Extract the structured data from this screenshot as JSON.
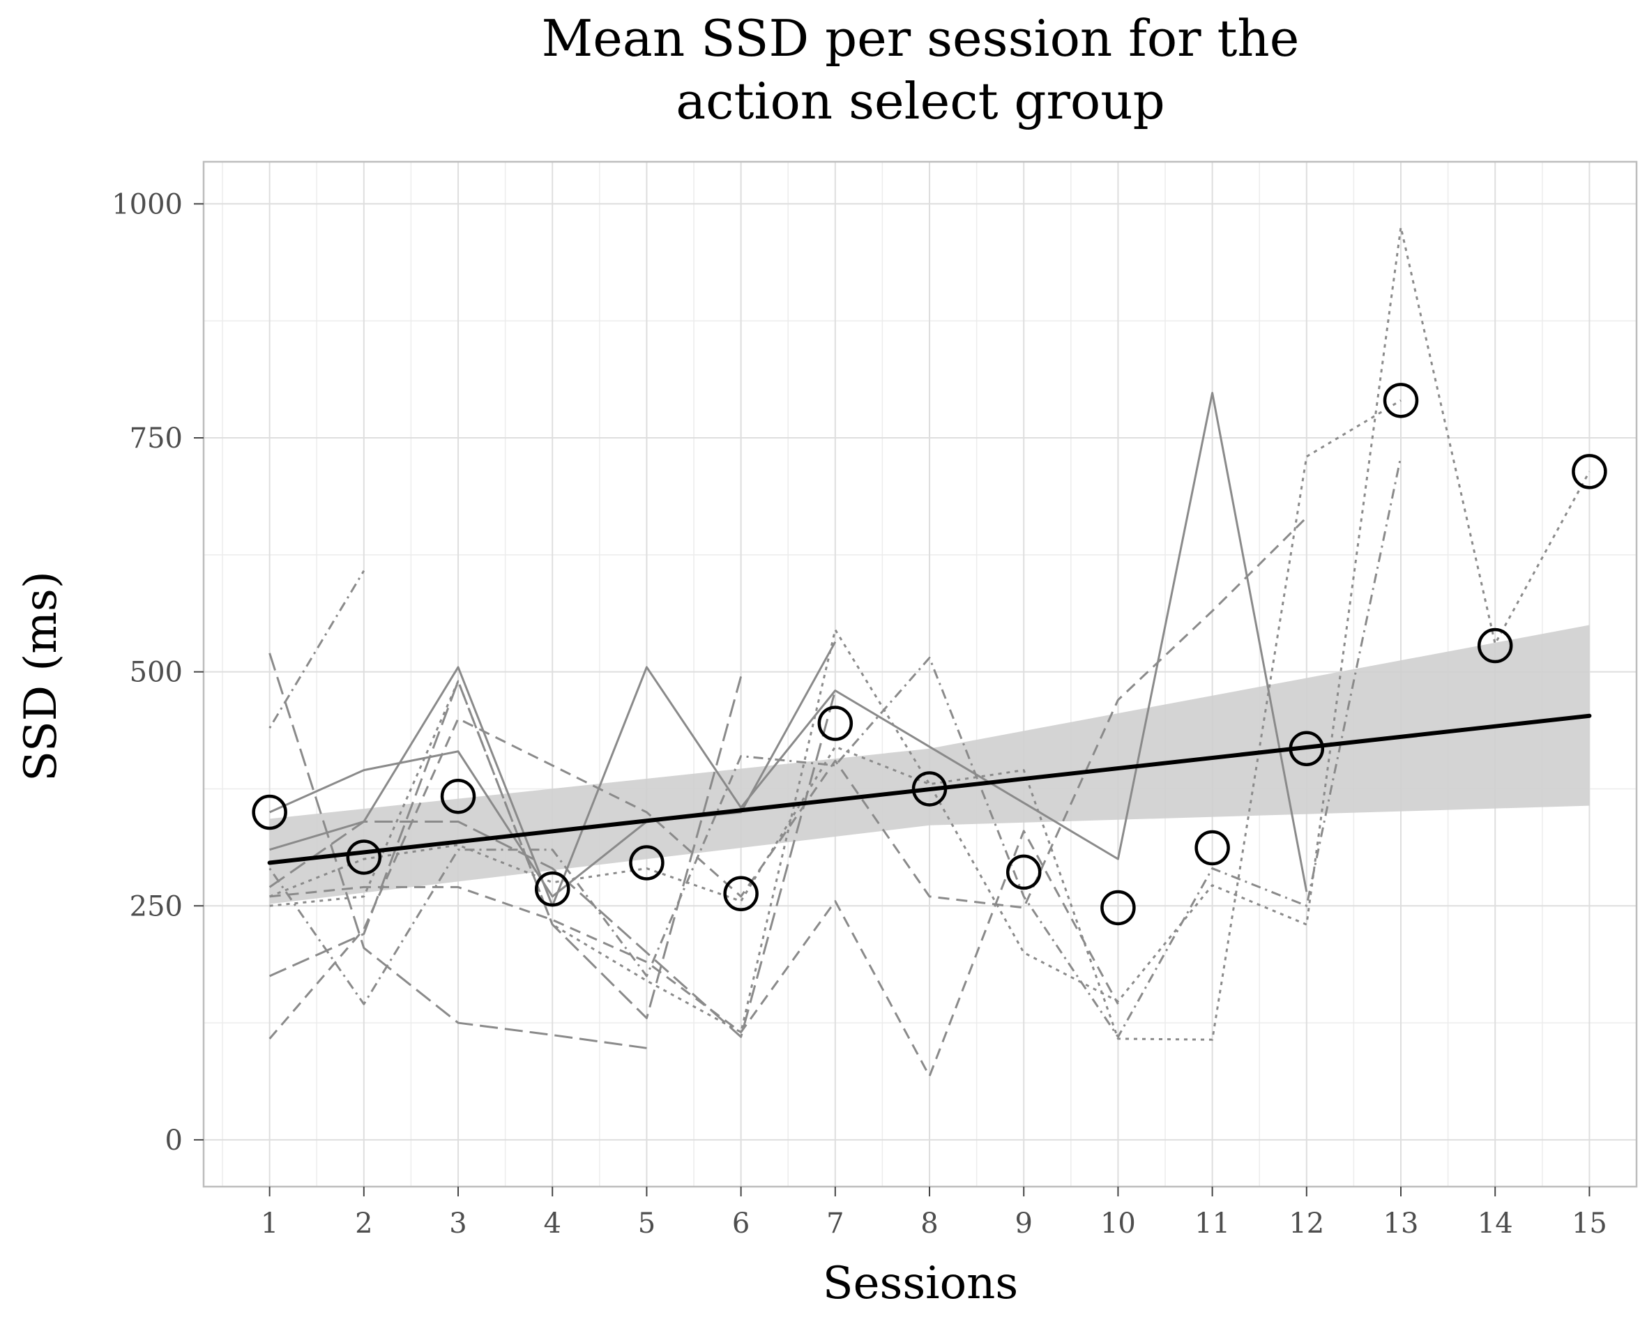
{
  "chart_data": {
    "type": "line",
    "title_lines": [
      "Mean SSD per session for the",
      "action select group"
    ],
    "xlabel": "Sessions",
    "ylabel": "SSD (ms)",
    "x": [
      1,
      2,
      3,
      4,
      5,
      6,
      7,
      8,
      9,
      10,
      11,
      12,
      13,
      14,
      15
    ],
    "xlim": [
      0.3,
      15.5
    ],
    "ylim": [
      -50,
      1045
    ],
    "x_ticks": [
      1,
      2,
      3,
      4,
      5,
      6,
      7,
      8,
      9,
      10,
      11,
      12,
      13,
      14,
      15
    ],
    "y_ticks": [
      0,
      250,
      500,
      750,
      1000
    ],
    "y_minor_ticks": [
      125,
      375,
      625,
      875
    ],
    "grid": true,
    "legend": "none",
    "means": [
      350,
      302,
      367,
      268,
      296,
      263,
      445,
      375,
      286,
      248,
      312,
      418,
      790,
      528,
      714
    ],
    "trend": {
      "x0": 1,
      "y0": 296,
      "x1": 15,
      "y1": 453
    },
    "ribbon": {
      "x": [
        1,
        8,
        15
      ],
      "lower": [
        252,
        336,
        357
      ],
      "upper": [
        343,
        418,
        550
      ]
    },
    "series": [
      {
        "linestyle": "solid",
        "x": [
          1,
          2,
          3,
          4,
          5,
          6,
          7,
          8,
          9,
          10,
          11,
          12
        ],
        "values": [
          310,
          340,
          505,
          250,
          505,
          355,
          480,
          420,
          360,
          300,
          798,
          265
        ]
      },
      {
        "linestyle": "solid",
        "x": [
          1,
          2,
          3,
          4,
          5,
          6,
          7
        ],
        "values": [
          350,
          395,
          415,
          260,
          340,
          350,
          532
        ]
      },
      {
        "linestyle": "longdash",
        "x": [
          1,
          2,
          3,
          4,
          5,
          6,
          7
        ],
        "values": [
          270,
          340,
          340,
          290,
          200,
          110,
          480
        ]
      },
      {
        "linestyle": "longdash",
        "x": [
          1,
          2,
          3,
          4,
          5,
          6
        ],
        "values": [
          175,
          220,
          490,
          230,
          130,
          495
        ]
      },
      {
        "linestyle": "longdash",
        "x": [
          1,
          2,
          3,
          4,
          5
        ],
        "values": [
          520,
          205,
          125,
          112,
          98
        ]
      },
      {
        "linestyle": "dashed",
        "x": [
          1,
          2,
          3,
          4,
          5,
          6,
          7,
          8,
          9,
          10,
          11,
          12
        ],
        "values": [
          108,
          225,
          450,
          400,
          350,
          260,
          405,
          260,
          248,
          470,
          565,
          665
        ]
      },
      {
        "linestyle": "dashed",
        "x": [
          1,
          2,
          3,
          4,
          5,
          6,
          7,
          8,
          9,
          10
        ],
        "values": [
          260,
          270,
          270,
          235,
          190,
          115,
          255,
          68,
          330,
          145
        ]
      },
      {
        "linestyle": "dotted",
        "x": [
          1,
          2,
          3,
          4,
          5,
          6,
          7,
          8,
          9,
          10,
          11,
          12,
          13,
          14,
          15
        ],
        "values": [
          250,
          260,
          490,
          230,
          170,
          115,
          545,
          380,
          200,
          148,
          272,
          230,
          975,
          530,
          714
        ]
      },
      {
        "linestyle": "dotted",
        "x": [
          1,
          2,
          3,
          4,
          5,
          6,
          7,
          8,
          9,
          10,
          11,
          12,
          13
        ],
        "values": [
          260,
          300,
          315,
          275,
          290,
          255,
          420,
          380,
          395,
          108,
          107,
          730,
          790
        ]
      },
      {
        "linestyle": "dotdash",
        "x": [
          1,
          2
        ],
        "values": [
          440,
          608
        ]
      },
      {
        "linestyle": "dotdash",
        "x": [
          1,
          2,
          3,
          4,
          5,
          6,
          7,
          8,
          9,
          10,
          11,
          12,
          13
        ],
        "values": [
          290,
          145,
          310,
          310,
          175,
          410,
          400,
          515,
          260,
          110,
          290,
          250,
          730
        ]
      }
    ]
  }
}
